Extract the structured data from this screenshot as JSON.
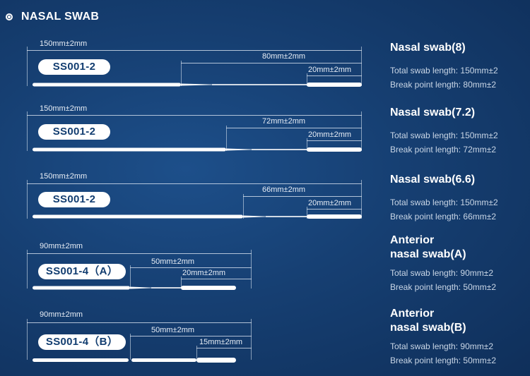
{
  "header": {
    "icon": "radio-icon",
    "title": "NASAL SWAB"
  },
  "swabs": [
    {
      "model": "SS001-2",
      "total_dim": "150mm±2mm",
      "break_dim": "80mm±2mm",
      "tip_dim": "20mm±2mm",
      "spec_title": "Nasal swab(8)",
      "spec_total": "Total swab length: 150mm±2",
      "spec_break": "Break point length: 80mm±2"
    },
    {
      "model": "SS001-2",
      "total_dim": "150mm±2mm",
      "break_dim": "72mm±2mm",
      "tip_dim": "20mm±2mm",
      "spec_title": "Nasal swab(7.2)",
      "spec_total": "Total swab length: 150mm±2",
      "spec_break": "Break point length: 72mm±2"
    },
    {
      "model": "SS001-2",
      "total_dim": "150mm±2mm",
      "break_dim": "66mm±2mm",
      "tip_dim": "20mm±2mm",
      "spec_title": "Nasal swab(6.6)",
      "spec_total": "Total swab length: 150mm±2",
      "spec_break": "Break point length: 66mm±2"
    },
    {
      "model": "SS001-4（A）",
      "total_dim": "90mm±2mm",
      "break_dim": "50mm±2mm",
      "tip_dim": "20mm±2mm",
      "spec_title_1": "Anterior",
      "spec_title_2": "nasal swab(A)",
      "spec_total": "Total swab length: 90mm±2",
      "spec_break": "Break point length: 50mm±2"
    },
    {
      "model": "SS001-4（B）",
      "total_dim": "90mm±2mm",
      "break_dim": "50mm±2mm",
      "tip_dim": "15mm±2mm",
      "spec_title_1": "Anterior",
      "spec_title_2": "nasal swab(B)",
      "spec_total": "Total swab length: 90mm±2",
      "spec_break": "Break point length: 50mm±2"
    }
  ]
}
